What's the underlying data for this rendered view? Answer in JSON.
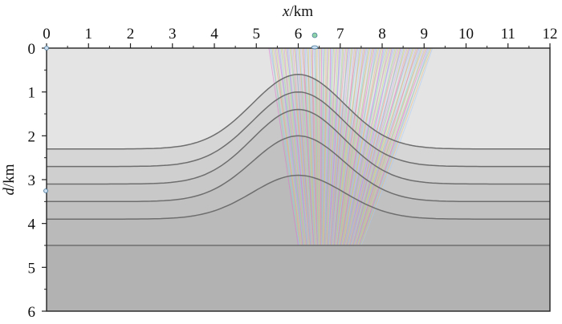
{
  "x_axis": {
    "label_var": "x",
    "label_unit": "/km",
    "ticks": [
      "0",
      "1",
      "2",
      "3",
      "4",
      "5",
      "6",
      "7",
      "8",
      "9",
      "10",
      "11",
      "12"
    ],
    "range": [
      0,
      12
    ]
  },
  "y_axis": {
    "label_var": "d",
    "label_unit": "/km",
    "ticks": [
      "0",
      "1",
      "2",
      "3",
      "4",
      "5",
      "6"
    ],
    "range": [
      0,
      6
    ]
  },
  "model": {
    "layer_colors": [
      "#e4e4e4",
      "#d6d6d6",
      "#cfcfcf",
      "#c8c8c8",
      "#c1c1c1",
      "#bababa",
      "#b2b2b2"
    ],
    "boundary_color": "#6e6e6e",
    "anticline_crest_x": 6.0,
    "interfaces": [
      {
        "flank_depth": 2.3,
        "crest_depth": 0.6
      },
      {
        "flank_depth": 2.7,
        "crest_depth": 1.0
      },
      {
        "flank_depth": 3.1,
        "crest_depth": 1.4
      },
      {
        "flank_depth": 3.5,
        "crest_depth": 2.0
      },
      {
        "flank_depth": 3.9,
        "crest_depth": 2.9
      },
      {
        "flank_depth": 4.5,
        "crest_depth": 4.5
      }
    ]
  },
  "ray_fan": {
    "top_x_range": [
      5.3,
      9.2
    ],
    "bottom_x_range": [
      6.0,
      7.5
    ],
    "bottom_depth": 4.5,
    "colors": [
      "#e46ad2",
      "#7fd3f0",
      "#c8a2f0",
      "#9be08e",
      "#f0b96e",
      "#a0c8ff",
      "#f08fb4",
      "#b9e86e"
    ]
  }
}
